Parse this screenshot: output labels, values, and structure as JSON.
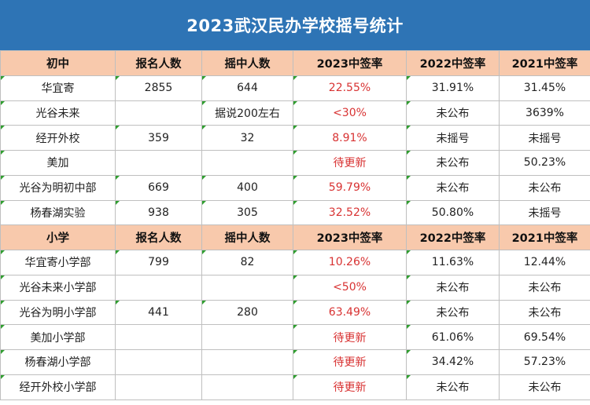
{
  "title": "2023武汉民办学校摇号统计",
  "sections": [
    {
      "header": [
        "初中",
        "报名人数",
        "摇中人数",
        "2023中签率",
        "2022中签率",
        "2021中签率"
      ],
      "rows": [
        [
          "华宜寄",
          "2855",
          "644",
          "22.55%",
          "31.91%",
          "31.45%"
        ],
        [
          "光谷未来",
          "",
          "据说200左右",
          "<30%",
          "未公布",
          "3639%"
        ],
        [
          "经开外校",
          "359",
          "32",
          "8.91%",
          "未摇号",
          "未摇号"
        ],
        [
          "美加",
          "",
          "",
          "待更新",
          "未公布",
          "50.23%"
        ],
        [
          "光谷为明初中部",
          "669",
          "400",
          "59.79%",
          "未公布",
          "未公布"
        ],
        [
          "杨春湖实验",
          "938",
          "305",
          "32.52%",
          "50.80%",
          "未摇号"
        ]
      ]
    },
    {
      "header": [
        "小学",
        "报名人数",
        "摇中人数",
        "2023中签率",
        "2022中签率",
        "2021中签率"
      ],
      "rows": [
        [
          "华宜寄小学部",
          "799",
          "82",
          "10.26%",
          "11.63%",
          "12.44%"
        ],
        [
          "光谷未来小学部",
          "",
          "",
          "<50%",
          "未公布",
          "未公布"
        ],
        [
          "光谷为明小学部",
          "441",
          "280",
          "63.49%",
          "未公布",
          "未公布"
        ],
        [
          "美加小学部",
          "",
          "",
          "待更新",
          "61.06%",
          "69.54%"
        ],
        [
          "杨春湖小学部",
          "",
          "",
          "待更新",
          "34.42%",
          "57.23%"
        ],
        [
          "经开外校小学部",
          "",
          "",
          "待更新",
          "未公布",
          "未公布"
        ]
      ]
    }
  ],
  "colors": {
    "title_bg": "#2e74b5",
    "header_bg": "#f8c9ac",
    "rate_2023": "#d83232",
    "cell_marker": "#2f9e2f"
  }
}
